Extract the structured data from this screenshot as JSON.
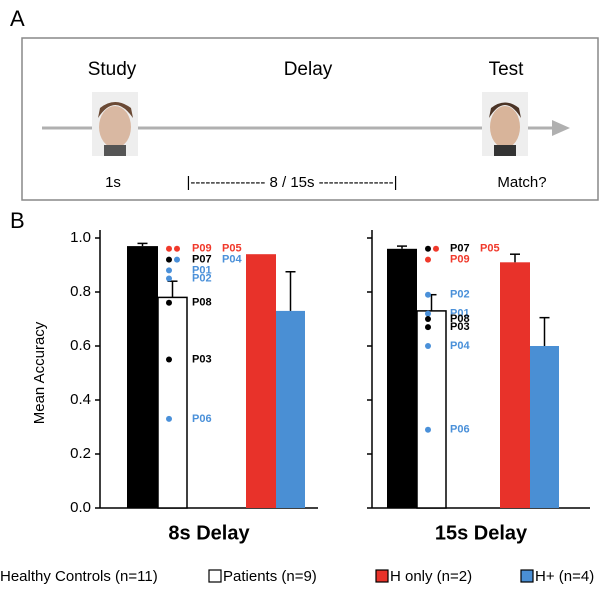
{
  "panel_a": {
    "letter": "A",
    "stages": [
      "Study",
      "Delay",
      "Test"
    ],
    "study_time": "1s",
    "delay_time": "|--------------- 8 / 15s ---------------|",
    "test_prompt": "Match?"
  },
  "panel_b_letter": "B",
  "chart_data": [
    {
      "type": "bar",
      "title": "8s Delay",
      "ylabel": "Mean Accuracy",
      "ylim": [
        0,
        1
      ],
      "yticks": [
        {
          "value": 0,
          "label": "0.0"
        },
        0.2,
        0.4,
        0.6,
        0.8,
        {
          "value": 1,
          "label": "1.0"
        }
      ],
      "series": [
        {
          "name": "Healthy Controls (n=11)",
          "color": "#000000",
          "value": 0.97,
          "error": 0.01
        },
        {
          "name": "Patients (n=9)",
          "color": "#ffffff",
          "value": 0.78,
          "error": 0.06
        },
        {
          "name": "H only (n=2)",
          "color": "#e8322a",
          "value": 0.94,
          "error": null
        },
        {
          "name": "H+ (n=4)",
          "color": "#4a8fd4",
          "value": 0.73,
          "error": 0.145
        }
      ],
      "points": [
        {
          "label": "P09",
          "value": 0.96,
          "color": "#f0392b"
        },
        {
          "label": "P05",
          "value": 0.96,
          "color": "#f0392b"
        },
        {
          "label": "P07",
          "value": 0.92,
          "color": "#000000"
        },
        {
          "label": "P04",
          "value": 0.92,
          "color": "#4a90d9"
        },
        {
          "label": "P01",
          "value": 0.88,
          "color": "#4a90d9"
        },
        {
          "label": "P02",
          "value": 0.85,
          "color": "#4a90d9"
        },
        {
          "label": "P08",
          "value": 0.76,
          "color": "#000000"
        },
        {
          "label": "P03",
          "value": 0.55,
          "color": "#000000"
        },
        {
          "label": "P06",
          "value": 0.33,
          "color": "#4a90d9"
        }
      ]
    },
    {
      "type": "bar",
      "title": "15s Delay",
      "ylim": [
        0,
        1
      ],
      "yticks": [
        0,
        0.2,
        0.4,
        0.6,
        0.8,
        1
      ],
      "series": [
        {
          "color": "#000000",
          "value": 0.96,
          "error": 0.01
        },
        {
          "color": "#ffffff",
          "value": 0.73,
          "error": 0.06
        },
        {
          "color": "#e8322a",
          "value": 0.91,
          "error": 0.03
        },
        {
          "color": "#4a8fd4",
          "value": 0.6,
          "error": 0.105
        }
      ],
      "points": [
        {
          "label": "P07",
          "value": 0.96,
          "color": "#000000"
        },
        {
          "label": "P05",
          "value": 0.96,
          "color": "#f0392b"
        },
        {
          "label": "P09",
          "value": 0.92,
          "color": "#f0392b"
        },
        {
          "label": "P02",
          "value": 0.79,
          "color": "#4a90d9"
        },
        {
          "label": "P01",
          "value": 0.72,
          "color": "#4a90d9"
        },
        {
          "label": "P08",
          "value": 0.7,
          "color": "#000000"
        },
        {
          "label": "P03",
          "value": 0.67,
          "color": "#000000"
        },
        {
          "label": "P04",
          "value": 0.6,
          "color": "#4a90d9"
        },
        {
          "label": "P06",
          "value": 0.29,
          "color": "#4a90d9"
        }
      ]
    }
  ]
}
